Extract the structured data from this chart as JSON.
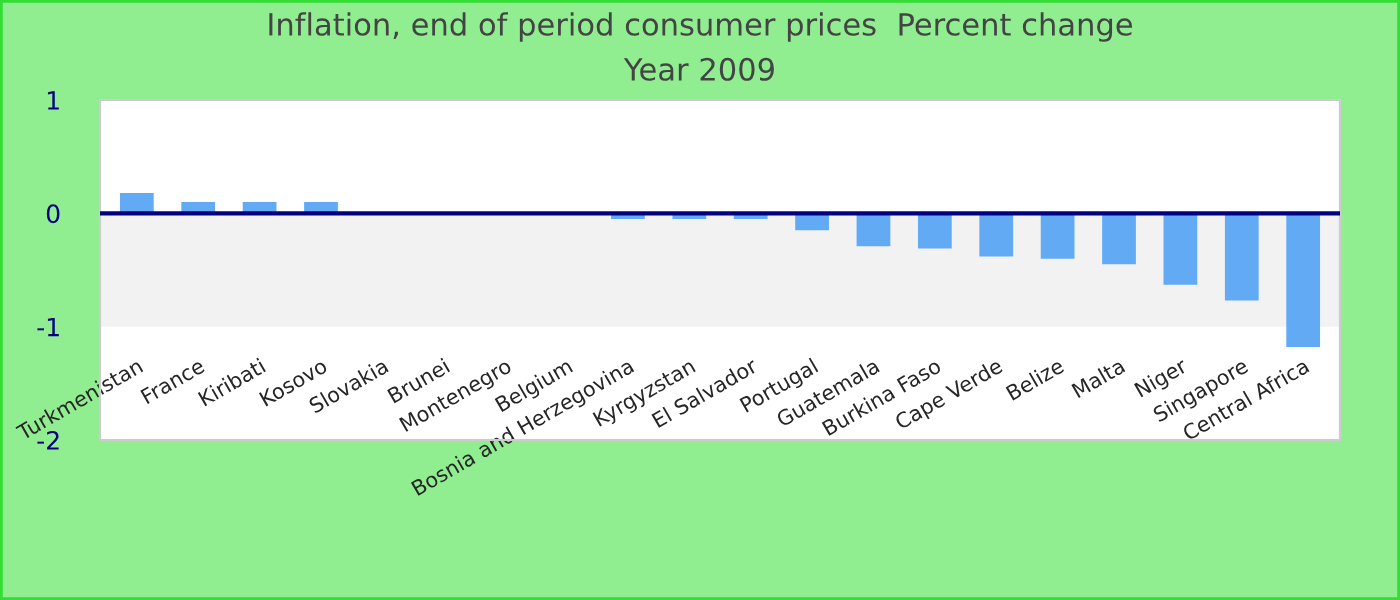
{
  "chart_data": {
    "type": "bar",
    "title": "Inflation, end of period consumer prices  Percent change",
    "subtitle": "Year 2009",
    "categories": [
      "Turkmenistan",
      "France",
      "Kiribati",
      "Kosovo",
      "Slovakia",
      "Brunei",
      "Montenegro",
      "Belgium",
      "Bosnia and Herzegovina",
      "Kyrgyzstan",
      "El Salvador",
      "Portugal",
      "Guatemala",
      "Burkina Faso",
      "Cape Verde",
      "Belize",
      "Malta",
      "Niger",
      "Singapore",
      "Central Africa"
    ],
    "series": [
      {
        "color": "#63aaf5",
        "values": [
          0.18,
          0.1,
          0.1,
          0.1,
          0,
          0,
          0,
          0,
          -0.05,
          -0.05,
          -0.05,
          -0.15,
          -0.29,
          -0.31,
          -0.38,
          -0.4,
          -0.45,
          -0.63,
          -0.77,
          -1.18
        ]
      }
    ],
    "ylim": [
      -2,
      1
    ],
    "yticks": [
      -2,
      -1,
      0,
      1
    ],
    "grid": false,
    "legend": false,
    "bands": [
      {
        "axis": "y",
        "from": -1,
        "to": 0,
        "color": "#f2f2f2"
      }
    ],
    "ref_lines": [
      {
        "axis": "y",
        "value": 0,
        "color": "#000080"
      }
    ]
  }
}
